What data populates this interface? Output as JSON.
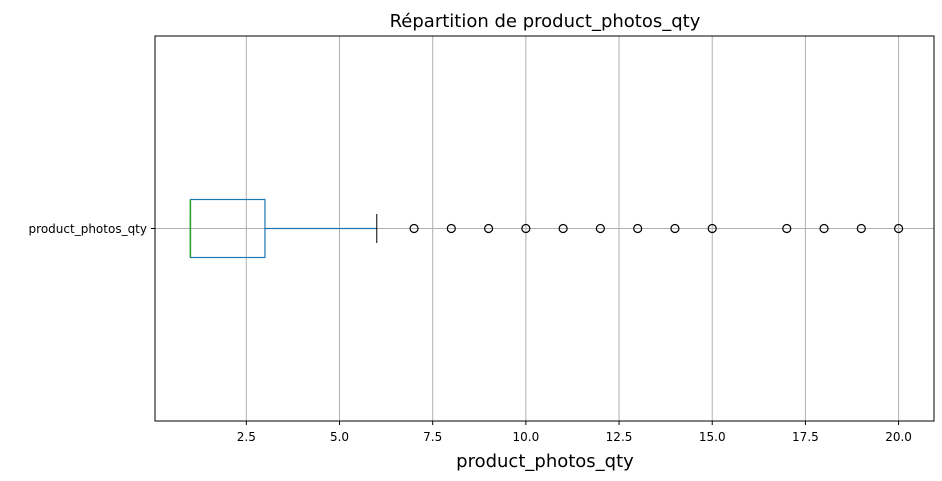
{
  "chart_data": {
    "type": "boxplot",
    "orientation": "horizontal",
    "title": "Répartition de product_photos_qty",
    "xlabel": "product_photos_qty",
    "ylabel": "",
    "category": "product_photos_qty",
    "xlim": [
      0.05,
      20.95
    ],
    "xticks": [
      2.5,
      5.0,
      7.5,
      10.0,
      12.5,
      15.0,
      17.5,
      20.0
    ],
    "xtick_labels": [
      "2.5",
      "5.0",
      "7.5",
      "10.0",
      "12.5",
      "15.0",
      "17.5",
      "20.0"
    ],
    "grid": true,
    "box": {
      "min": 1,
      "q1": 1,
      "median": 1,
      "q3": 3,
      "whisker_low": 1,
      "whisker_high": 6
    },
    "outliers": [
      7,
      8,
      9,
      10,
      11,
      12,
      13,
      14,
      15,
      17,
      18,
      19,
      20
    ],
    "colors": {
      "box": "#1f77b4",
      "median": "#2ca02c",
      "whisker_cap": "#000000",
      "grid": "#b0b0b0",
      "outlier_edge": "#000000"
    }
  }
}
